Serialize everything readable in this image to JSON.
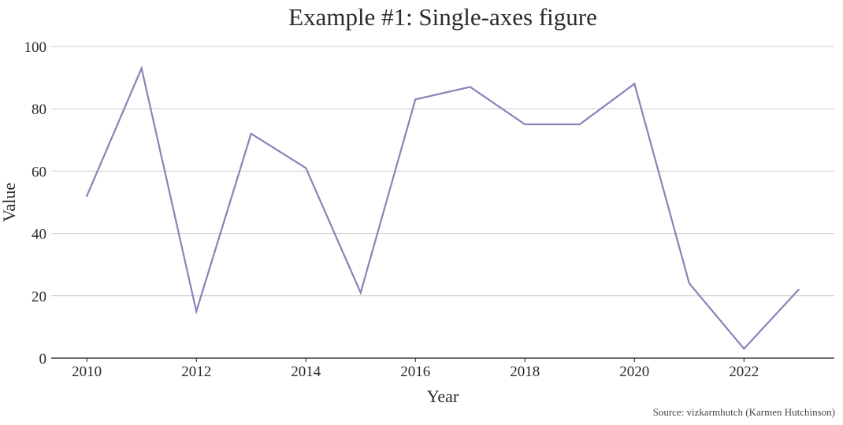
{
  "colors": {
    "line": "#8a82b8",
    "grid": "#cccccc",
    "axis": "#1a1a1a",
    "text": "#2b2b2b"
  },
  "chart_data": {
    "type": "line",
    "title": "Example #1: Single-axes figure",
    "xlabel": "Year",
    "ylabel": "Value",
    "source": "Source: vizkarmhutch (Karmen Hutchinson)",
    "x": [
      2010,
      2011,
      2012,
      2013,
      2014,
      2015,
      2016,
      2017,
      2018,
      2019,
      2020,
      2021,
      2022,
      2023
    ],
    "series": [
      {
        "values": [
          52,
          93,
          15,
          72,
          61,
          21,
          83,
          87,
          75,
          75,
          88,
          24,
          3,
          22
        ]
      }
    ],
    "xlim": [
      2009.35,
      2023.65
    ],
    "ylim": [
      0,
      100
    ],
    "xticks": [
      2010,
      2012,
      2014,
      2016,
      2018,
      2020,
      2022
    ],
    "yticks": [
      0,
      20,
      40,
      60,
      80,
      100
    ],
    "grid": "horizontal"
  }
}
